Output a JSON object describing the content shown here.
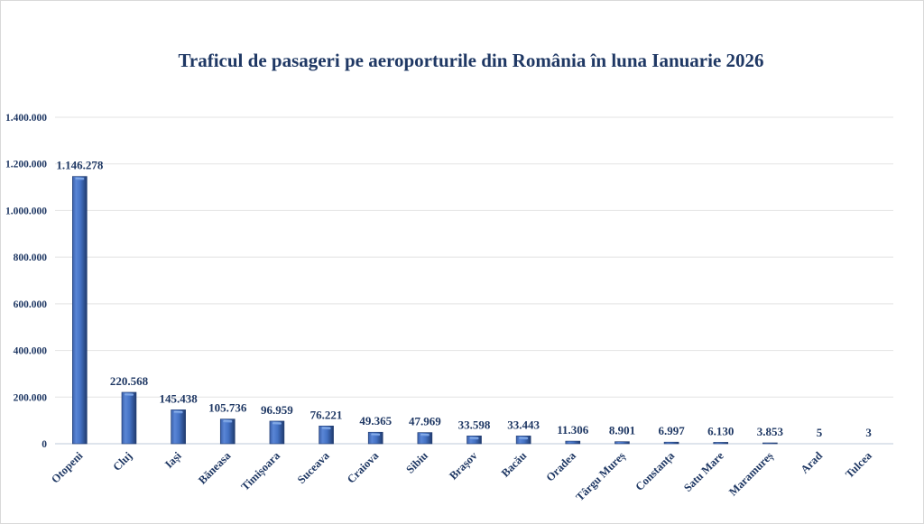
{
  "chart_data": {
    "type": "bar",
    "title": "Traficul de pasageri pe aeroporturile din România în luna Ianuarie 2026",
    "xlabel": "",
    "ylabel": "",
    "categories": [
      "Otopeni",
      "Cluj",
      "Iași",
      "Băneasa",
      "Timișoara",
      "Suceava",
      "Craiova",
      "Sibiu",
      "Brașov",
      "Bacău",
      "Oradea",
      "Târgu Mureș",
      "Constanța",
      "Satu Mare",
      "Maramureș",
      "Arad",
      "Tulcea"
    ],
    "values": [
      1146278,
      220568,
      145438,
      105736,
      96959,
      76221,
      49365,
      47969,
      33598,
      33443,
      11306,
      8901,
      6997,
      6130,
      3853,
      5,
      3
    ],
    "data_labels": [
      "1.146.278",
      "220.568",
      "145.438",
      "105.736",
      "96.959",
      "76.221",
      "49.365",
      "47.969",
      "33.598",
      "33.443",
      "11.306",
      "8.901",
      "6.997",
      "6.130",
      "3.853",
      "5",
      "3"
    ],
    "ylim": [
      0,
      1400000
    ],
    "yticks": [
      0,
      200000,
      400000,
      600000,
      800000,
      1000000,
      1200000,
      1400000
    ],
    "ytick_labels": [
      "0",
      "200.000",
      "400.000",
      "600.000",
      "800.000",
      "1.000.000",
      "1.200.000",
      "1.400.000"
    ],
    "grid": true,
    "legend": "none",
    "bar_color": "#4472c4",
    "text_color": "#1f3864"
  }
}
